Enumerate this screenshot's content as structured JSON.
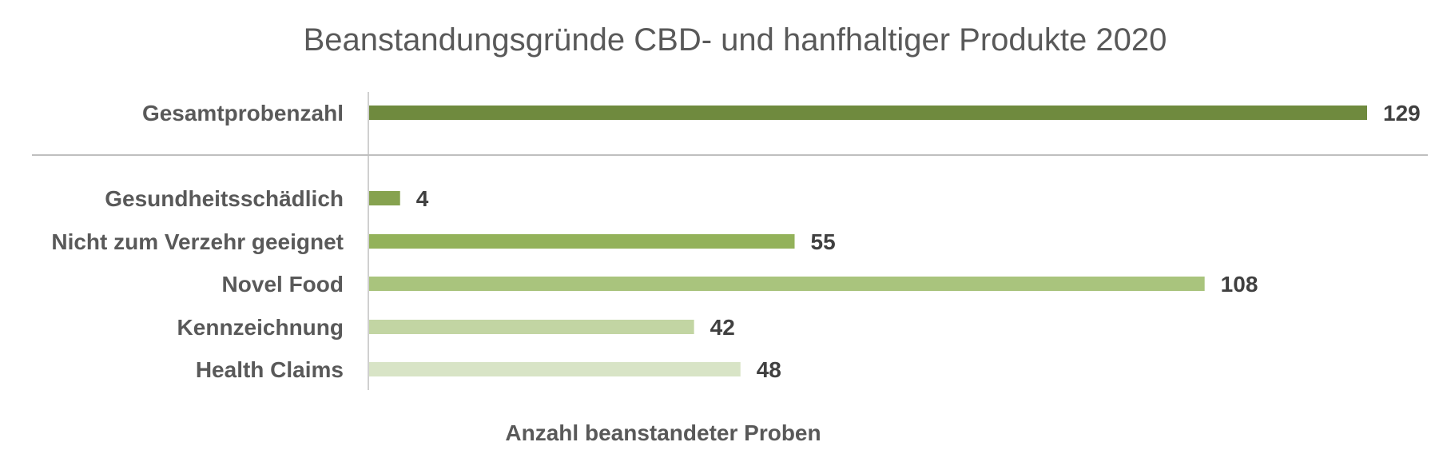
{
  "chart_data": {
    "type": "bar",
    "orientation": "horizontal",
    "title": "Beanstandungsgründe CBD- und hanfhaltiger Produkte 2020",
    "xlabel": "Anzahl beanstandeter Proben",
    "ylabel": "",
    "xlim": [
      0,
      129
    ],
    "grid": false,
    "legend": "none",
    "categories": [
      "Gesamtprobenzahl",
      "Gesundheitsschädlich",
      "Nicht zum Verzehr geeignet",
      "Novel Food",
      "Kennzeichnung",
      "Health Claims"
    ],
    "values": [
      129,
      4,
      55,
      108,
      42,
      48
    ],
    "colors": [
      "#6f8a3e",
      "#86a24f",
      "#93b25a",
      "#a9c47d",
      "#c2d5a3",
      "#d8e4c6"
    ]
  }
}
